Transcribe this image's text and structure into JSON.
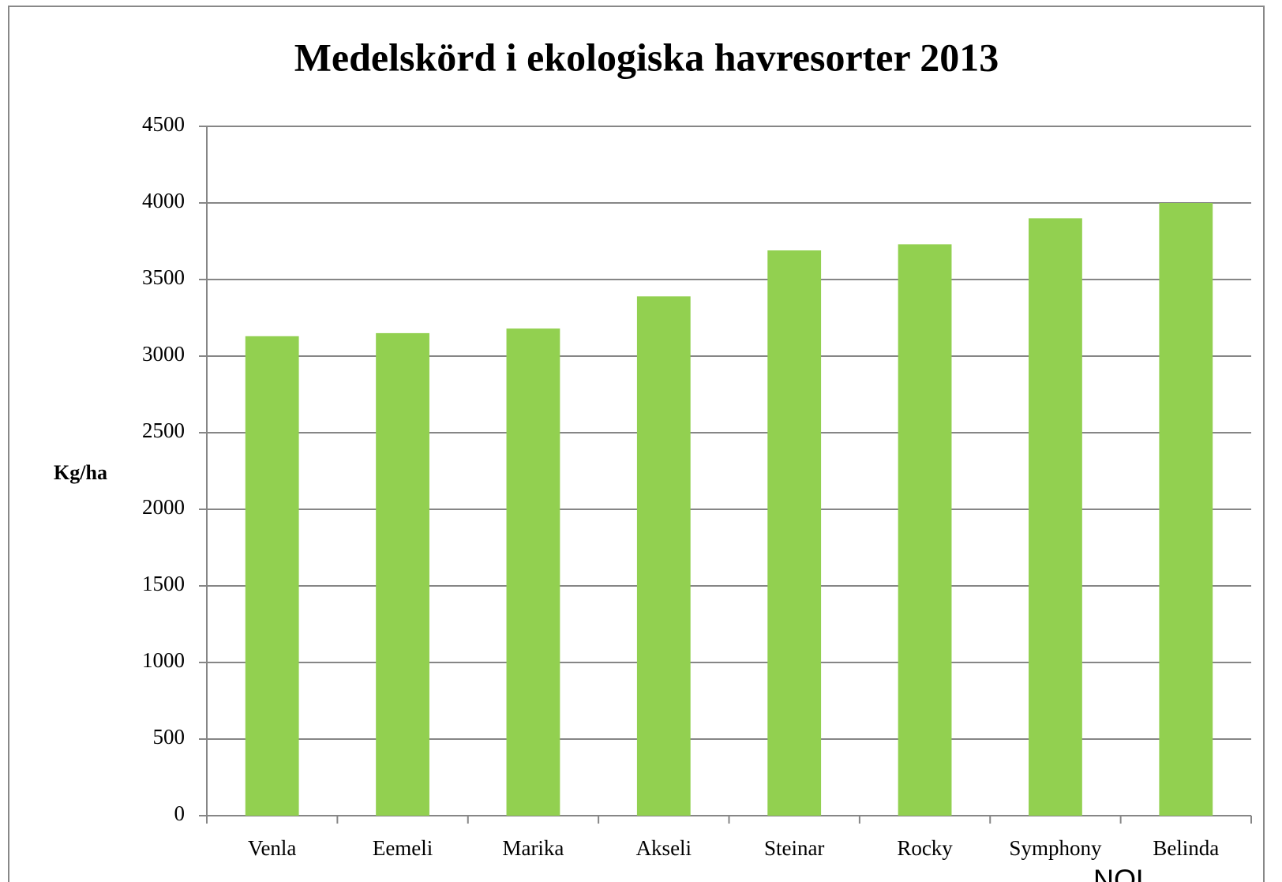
{
  "chart_data": {
    "type": "bar",
    "title": "Medelskörd i ekologiska havresorter 2013",
    "y_label": "Kg/ha",
    "annotation": "NOL",
    "categories": [
      "Venla",
      "Eemeli",
      "Marika",
      "Akseli",
      "Steinar",
      "Rocky",
      "Symphony",
      "Belinda"
    ],
    "values": [
      3130,
      3150,
      3180,
      3390,
      3690,
      3730,
      3900,
      4000
    ],
    "color": "#92d050",
    "ylim": [
      0,
      4500
    ],
    "yticks": [
      0,
      500,
      1000,
      1500,
      2000,
      2500,
      3000,
      3500,
      4000,
      4500
    ],
    "grid": true
  }
}
